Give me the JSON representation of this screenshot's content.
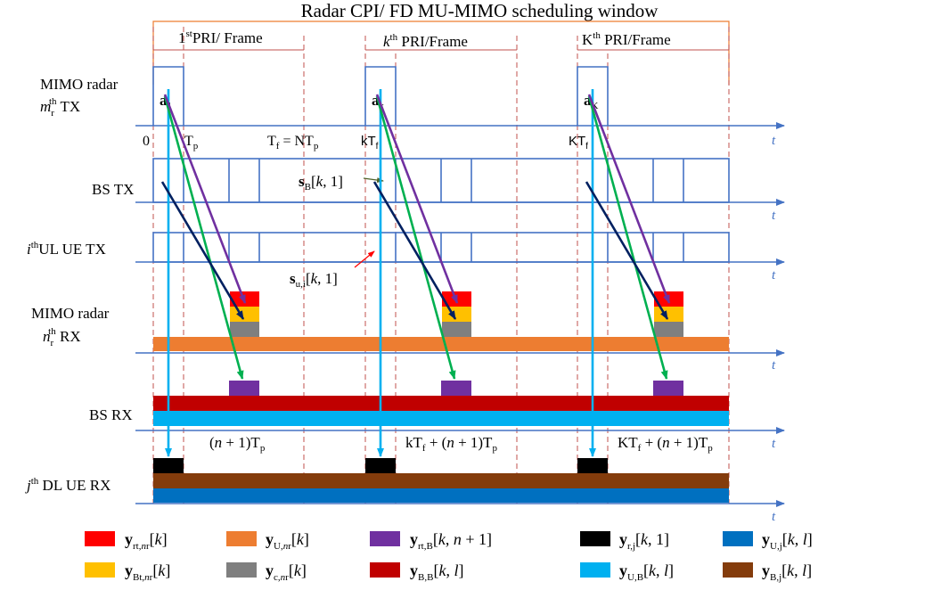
{
  "title": "Radar CPI/ FD MU-MIMO  scheduling window",
  "frames": [
    {
      "label": "1stPRI/ Frame",
      "sup": "st",
      "pre": "1",
      "post": "PRI/ Frame"
    },
    {
      "label": "kth PRI/Frame",
      "sup": "th",
      "pre": "k",
      "post": " PRI/Frame"
    },
    {
      "label": "Kth PRI/Frame",
      "sup": "th",
      "pre": "K",
      "post": " PRI/Frame"
    }
  ],
  "rows": {
    "radar_tx": {
      "line1": "MIMO radar",
      "line2_base": "m",
      "line2_sub": "r",
      "line2_sup": "th",
      "line2_rest": " TX"
    },
    "bs_tx": "BS TX",
    "ul_ue_tx": {
      "base": "i",
      "sup": "th",
      "rest": "UL  UE TX"
    },
    "radar_rx": {
      "line1": "MIMO radar",
      "line2_base": "n",
      "line2_sub": "r",
      "line2_sup": "th",
      "line2_rest": " RX"
    },
    "bs_rx": "BS RX",
    "dl_ue_rx": {
      "base": "j",
      "sup": "th",
      "rest": " DL  UE RX"
    }
  },
  "axis_label": "t",
  "time_labels": {
    "zero": "0",
    "tp": "Tp",
    "tf": "Tf = NTp",
    "ktf": "kTf",
    "Ktf": "KTf"
  },
  "signal_labels": {
    "a1": "a1",
    "ak": "ak",
    "aK": "aK",
    "sB": "sB[k, 1]",
    "su": "su,i[k, 1]"
  },
  "rx_time_labels": [
    "(n + 1)Tp",
    "kTf + (n + 1)Tp",
    "KTf + (n + 1)Tp"
  ],
  "legend": [
    {
      "color": "#ff0000",
      "label": "yrt,nr[k]"
    },
    {
      "color": "#ed7d31",
      "label": "yU,nr[k]"
    },
    {
      "color": "#7030a0",
      "label": "yrt,B[k, n + 1]"
    },
    {
      "color": "#000000",
      "label": "yr,j[k, 1]"
    },
    {
      "color": "#0070c0",
      "label": "yU,j[k, l]"
    },
    {
      "color": "#ffc000",
      "label": "yBt,nr[k]"
    },
    {
      "color": "#7f7f7f",
      "label": "yc,nr[k]"
    },
    {
      "color": "#c00000",
      "label": "yB,B[k, l]"
    },
    {
      "color": "#00b0f0",
      "label": "yU,B[k, l]"
    },
    {
      "color": "#843c0c",
      "label": "yB,j[k, l]"
    }
  ],
  "colors": {
    "axis": "#4472c4",
    "frame_dash": "#c0504d",
    "window_line": "#ed7d31",
    "green_arrow": "#00b050",
    "purple_arrow": "#7030a0",
    "navy_arrow": "#002060",
    "cyan_arrow": "#00b0f0"
  }
}
